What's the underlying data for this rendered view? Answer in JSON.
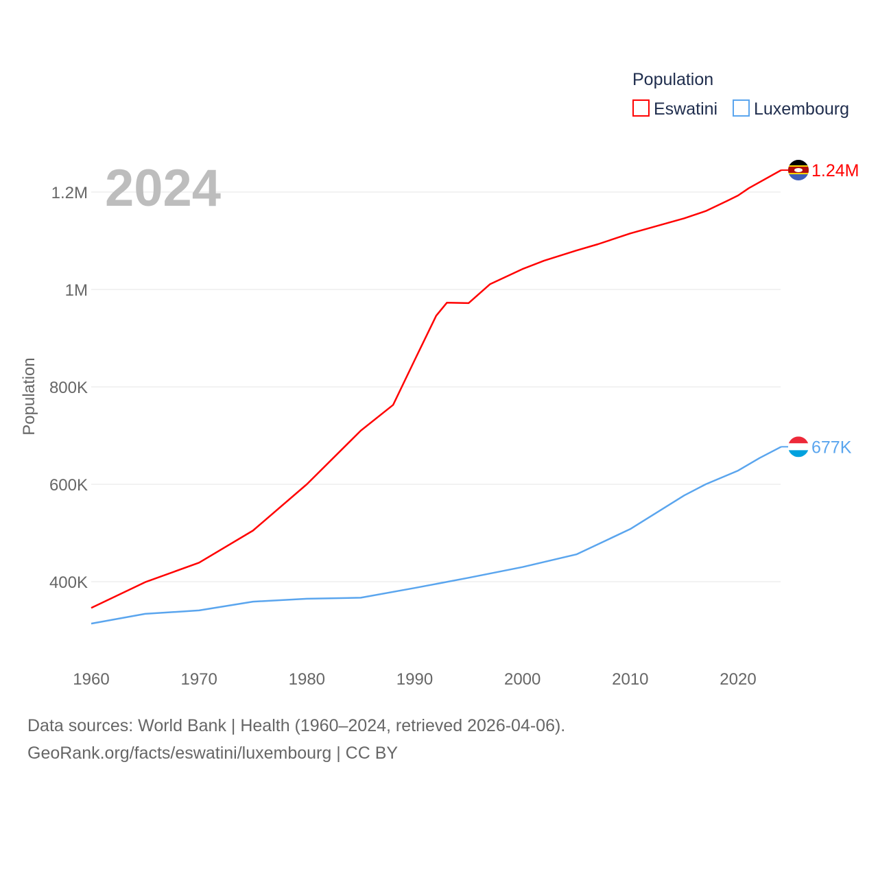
{
  "chart_data": {
    "type": "line",
    "title": "Population",
    "year_label": "2024",
    "ylabel": "Population",
    "xlim": [
      1960,
      2024
    ],
    "ylim": [
      250000,
      1300000
    ],
    "x_ticks": [
      1960,
      1970,
      1980,
      1990,
      2000,
      2010,
      2020
    ],
    "x_tick_labels": [
      "1960",
      "1970",
      "1980",
      "1990",
      "2000",
      "2010",
      "2020"
    ],
    "y_ticks": [
      400000,
      600000,
      800000,
      1000000,
      1200000
    ],
    "y_tick_labels": [
      "400K",
      "600K",
      "800K",
      "1M",
      "1.2M"
    ],
    "grid": true,
    "legend_placement": "top-right",
    "series": [
      {
        "name": "Eswatini",
        "color": "#ff0000",
        "end_label": "1.24M",
        "flag": "eswatini-flag",
        "x": [
          1960,
          1965,
          1970,
          1975,
          1980,
          1985,
          1988,
          1990,
          1992,
          1993,
          1995,
          1997,
          2000,
          2002,
          2005,
          2007,
          2010,
          2015,
          2017,
          2019,
          2020,
          2021,
          2024
        ],
        "values": [
          346000,
          399000,
          439000,
          505000,
          600000,
          710000,
          763000,
          855000,
          946000,
          973000,
          972000,
          1011000,
          1042000,
          1059000,
          1080000,
          1093000,
          1115000,
          1146000,
          1161000,
          1182000,
          1193000,
          1208000,
          1245000
        ]
      },
      {
        "name": "Luxembourg",
        "color": "#5aa5ee",
        "end_label": "677K",
        "flag": "luxembourg-flag",
        "x": [
          1960,
          1965,
          1970,
          1975,
          1980,
          1985,
          1990,
          1995,
          2000,
          2005,
          2010,
          2015,
          2017,
          2020,
          2022,
          2024
        ],
        "values": [
          314000,
          334000,
          341000,
          359000,
          365000,
          367000,
          387000,
          408000,
          430000,
          456000,
          508000,
          577000,
          600000,
          628000,
          654000,
          677000
        ]
      }
    ]
  },
  "footer": {
    "line1": "Data sources: World Bank | Health (1960–2024, retrieved 2026-04-06).",
    "line2": "GeoRank.org/facts/eswatini/luxembourg | CC BY"
  }
}
